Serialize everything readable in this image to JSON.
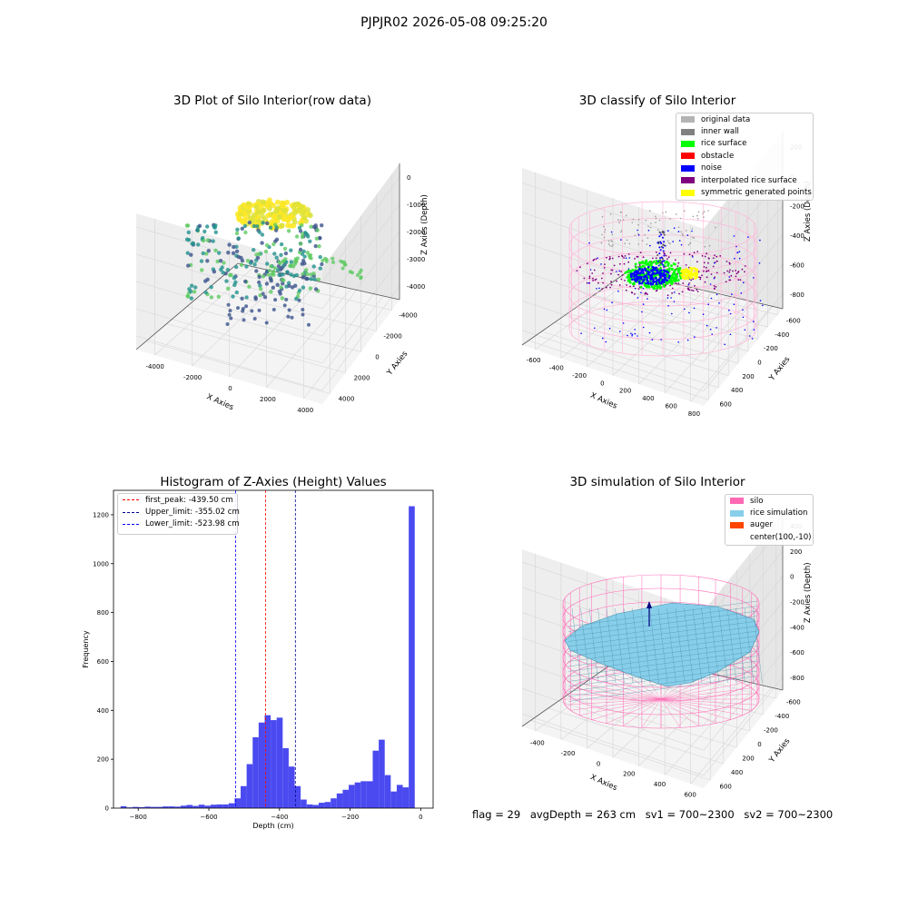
{
  "suptitle": "PJPJR02 2026-05-08 09:25:20",
  "chart_data": [
    {
      "type": "scatter",
      "title": "3D Plot of Silo Interior(row data)",
      "xlabel": "X Axies",
      "ylabel": "Y Axies",
      "zlabel": "Z Axies (Depth)",
      "x_ticks": [
        "-4000",
        "-2000",
        "0",
        "2000",
        "4000"
      ],
      "y_ticks": [
        "-4000",
        "-2000",
        "0",
        "2000",
        "4000"
      ],
      "z_ticks": [
        "0",
        "-1000",
        "-2000",
        "-3000",
        "-4000"
      ],
      "colormap": [
        "#440154",
        "#3b528b",
        "#21918c",
        "#5ec962",
        "#fde725"
      ]
    },
    {
      "type": "scatter",
      "title": "3D classify of Silo Interior",
      "xlabel": "X Axies",
      "ylabel": "Y Axies",
      "zlabel": "Z Axies (Depth)",
      "x_ticks": [
        "-600",
        "-400",
        "-200",
        "0",
        "200",
        "400",
        "600",
        "800"
      ],
      "y_ticks": [
        "-600",
        "-400",
        "-200",
        "0",
        "200",
        "400",
        "600"
      ],
      "z_ticks": [
        "200",
        "0",
        "-200",
        "-400",
        "-600",
        "-800"
      ],
      "legend": [
        {
          "label": "original data",
          "color": "#b4b4b4"
        },
        {
          "label": "inner wall",
          "color": "#808080"
        },
        {
          "label": "rice surface",
          "color": "#00ff00"
        },
        {
          "label": "obstacle",
          "color": "#ff0000"
        },
        {
          "label": "noise",
          "color": "#0000ff"
        },
        {
          "label": "interpolated rice surface",
          "color": "#800080"
        },
        {
          "label": "symmetric generated points",
          "color": "#ffff00"
        }
      ]
    },
    {
      "type": "bar",
      "title": "Histogram of Z-Axies (Height) Values",
      "xlabel": "Depth (cm)",
      "ylabel": "Frequency",
      "xlim": [
        -870,
        35
      ],
      "ylim": [
        0,
        1300
      ],
      "x_ticks": [
        -800,
        -600,
        -400,
        -200,
        0
      ],
      "y_ticks": [
        0,
        200,
        400,
        600,
        800,
        1000,
        1200
      ],
      "bar_color": "#4a4af0",
      "bin_width": 17,
      "bins": [
        {
          "x": -850,
          "count": 8
        },
        {
          "x": -833,
          "count": 3
        },
        {
          "x": -816,
          "count": 5
        },
        {
          "x": -799,
          "count": 4
        },
        {
          "x": -782,
          "count": 6
        },
        {
          "x": -765,
          "count": 5
        },
        {
          "x": -748,
          "count": 5
        },
        {
          "x": -731,
          "count": 7
        },
        {
          "x": -714,
          "count": 7
        },
        {
          "x": -697,
          "count": 6
        },
        {
          "x": -680,
          "count": 10
        },
        {
          "x": -663,
          "count": 13
        },
        {
          "x": -646,
          "count": 9
        },
        {
          "x": -629,
          "count": 14
        },
        {
          "x": -612,
          "count": 10
        },
        {
          "x": -595,
          "count": 14
        },
        {
          "x": -578,
          "count": 15
        },
        {
          "x": -561,
          "count": 15
        },
        {
          "x": -544,
          "count": 20
        },
        {
          "x": -527,
          "count": 40
        },
        {
          "x": -510,
          "count": 90
        },
        {
          "x": -493,
          "count": 180
        },
        {
          "x": -476,
          "count": 290
        },
        {
          "x": -459,
          "count": 350
        },
        {
          "x": -442,
          "count": 380
        },
        {
          "x": -425,
          "count": 360
        },
        {
          "x": -408,
          "count": 370
        },
        {
          "x": -391,
          "count": 245
        },
        {
          "x": -374,
          "count": 170
        },
        {
          "x": -357,
          "count": 90
        },
        {
          "x": -340,
          "count": 35
        },
        {
          "x": -323,
          "count": 15
        },
        {
          "x": -306,
          "count": 13
        },
        {
          "x": -289,
          "count": 22
        },
        {
          "x": -272,
          "count": 25
        },
        {
          "x": -255,
          "count": 40
        },
        {
          "x": -238,
          "count": 60
        },
        {
          "x": -221,
          "count": 75
        },
        {
          "x": -204,
          "count": 95
        },
        {
          "x": -187,
          "count": 105
        },
        {
          "x": -170,
          "count": 110
        },
        {
          "x": -153,
          "count": 110
        },
        {
          "x": -136,
          "count": 235
        },
        {
          "x": -119,
          "count": 280
        },
        {
          "x": -102,
          "count": 135
        },
        {
          "x": -85,
          "count": 68
        },
        {
          "x": -68,
          "count": 95
        },
        {
          "x": -51,
          "count": 85
        },
        {
          "x": -34,
          "count": 1235
        }
      ],
      "vlines": [
        {
          "label": "first_peak: -439.50 cm",
          "x": -439.5,
          "color": "#ff0000"
        },
        {
          "label": "Upper_limit: -355.02 cm",
          "x": -355.02,
          "color": "#00008b"
        },
        {
          "label": "Lower_limit: -523.98 cm",
          "x": -523.98,
          "color": "#0000ff"
        }
      ]
    },
    {
      "type": "scatter",
      "title": "3D simulation of Silo Interior",
      "xlabel": "X Axies",
      "ylabel": "Y Axies",
      "zlabel": "Z Axies (Depth)",
      "x_ticks": [
        "-400",
        "-200",
        "0",
        "200",
        "400",
        "600"
      ],
      "y_ticks": [
        "-600",
        "-400",
        "-200",
        "0",
        "200",
        "400",
        "600"
      ],
      "z_ticks": [
        "400",
        "200",
        "0",
        "-200",
        "-400",
        "-600",
        "-800"
      ],
      "legend": [
        {
          "label": "silo",
          "color": "#ff69b4"
        },
        {
          "label": "rice simulation",
          "color": "#87ceeb"
        },
        {
          "label": "auger",
          "color": "#ff4500"
        },
        {
          "label": "center(100,-10)",
          "color": ""
        }
      ]
    }
  ],
  "footer": {
    "flag": "flag = 29",
    "avg": "avgDepth = 263 cm",
    "sv1": "sv1 = 700~2300",
    "sv2": "sv2 = 700~2300"
  }
}
